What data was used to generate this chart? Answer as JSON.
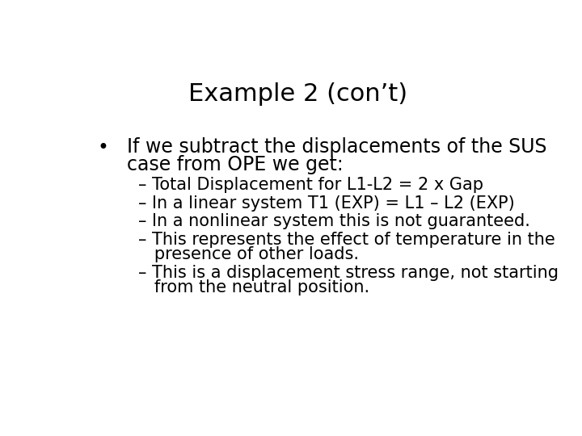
{
  "title": "Example 2 (con’t)",
  "title_fontsize": 22,
  "background_color": "#ffffff",
  "text_color": "#000000",
  "bullet_char": "•",
  "bullet_text_line1": "If we subtract the displacements of the SUS",
  "bullet_text_line2": "case from OPE we get:",
  "bullet_fontsize": 17,
  "sub_bullets": [
    "– Total Displacement for L1-L2 = 2 x Gap",
    "– In a linear system T1 (EXP) = L1 – L2 (EXP)",
    "– In a nonlinear system this is not guaranteed.",
    "– This represents the effect of temperature in the",
    "   presence of other loads.",
    "– This is a displacement stress range, not starting",
    "   from the neutral position."
  ],
  "sub_bullet_fontsize": 15,
  "font_family": "DejaVu Sans"
}
